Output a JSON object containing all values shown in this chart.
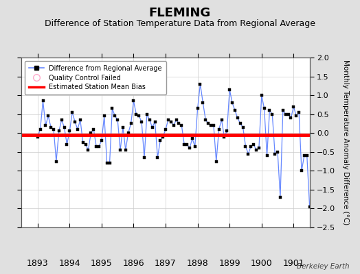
{
  "title": "FLEMING",
  "subtitle": "Difference of Station Temperature Data from Regional Average",
  "ylabel_right": "Monthly Temperature Anomaly Difference (°C)",
  "xlim": [
    1892.5,
    1901.5
  ],
  "ylim": [
    -2.5,
    2.0
  ],
  "yticks": [
    -2.5,
    -2.0,
    -1.5,
    -1.0,
    -0.5,
    0.0,
    0.5,
    1.0,
    1.5,
    2.0
  ],
  "xticks": [
    1893,
    1894,
    1895,
    1896,
    1897,
    1898,
    1899,
    1900,
    1901
  ],
  "bias_value": -0.05,
  "line_color": "#6688ff",
  "marker_color": "#000000",
  "bias_color": "#ff0000",
  "background_color": "#e0e0e0",
  "plot_bg_color": "#ffffff",
  "watermark": "Berkeley Earth",
  "title_fontsize": 13,
  "subtitle_fontsize": 9,
  "x_data": [
    1893.0,
    1893.083,
    1893.167,
    1893.25,
    1893.333,
    1893.417,
    1893.5,
    1893.583,
    1893.667,
    1893.75,
    1893.833,
    1893.917,
    1894.0,
    1894.083,
    1894.167,
    1894.25,
    1894.333,
    1894.417,
    1894.5,
    1894.583,
    1894.667,
    1894.75,
    1894.833,
    1894.917,
    1895.0,
    1895.083,
    1895.167,
    1895.25,
    1895.333,
    1895.417,
    1895.5,
    1895.583,
    1895.667,
    1895.75,
    1895.833,
    1895.917,
    1896.0,
    1896.083,
    1896.167,
    1896.25,
    1896.333,
    1896.417,
    1896.5,
    1896.583,
    1896.667,
    1896.75,
    1896.833,
    1896.917,
    1897.0,
    1897.083,
    1897.167,
    1897.25,
    1897.333,
    1897.417,
    1897.5,
    1897.583,
    1897.667,
    1897.75,
    1897.833,
    1897.917,
    1898.0,
    1898.083,
    1898.167,
    1898.25,
    1898.333,
    1898.417,
    1898.5,
    1898.583,
    1898.667,
    1898.75,
    1898.833,
    1898.917,
    1899.0,
    1899.083,
    1899.167,
    1899.25,
    1899.333,
    1899.417,
    1899.5,
    1899.583,
    1899.667,
    1899.75,
    1899.833,
    1899.917,
    1900.0,
    1900.083,
    1900.167,
    1900.25,
    1900.333,
    1900.417,
    1900.5,
    1900.583,
    1900.667,
    1900.75,
    1900.833,
    1900.917,
    1901.0,
    1901.083,
    1901.167,
    1901.25,
    1901.333,
    1901.417,
    1901.5
  ],
  "y_data": [
    -0.1,
    0.1,
    0.85,
    0.2,
    0.45,
    0.15,
    0.1,
    -0.75,
    0.05,
    0.35,
    0.15,
    -0.3,
    0.05,
    0.55,
    0.3,
    0.1,
    0.35,
    -0.25,
    -0.3,
    -0.45,
    0.0,
    0.1,
    -0.35,
    -0.35,
    -0.2,
    0.45,
    -0.8,
    -0.8,
    0.65,
    0.45,
    0.35,
    -0.45,
    0.15,
    -0.45,
    0.0,
    0.25,
    0.85,
    0.5,
    0.45,
    0.3,
    -0.65,
    0.5,
    0.35,
    0.15,
    0.3,
    -0.65,
    -0.2,
    -0.1,
    0.1,
    0.35,
    0.3,
    0.2,
    0.35,
    0.25,
    0.2,
    -0.3,
    -0.3,
    -0.4,
    -0.15,
    -0.35,
    0.65,
    1.3,
    0.8,
    0.35,
    0.25,
    0.2,
    0.2,
    -0.75,
    0.1,
    0.35,
    -0.1,
    0.05,
    1.15,
    0.8,
    0.6,
    0.4,
    0.25,
    0.15,
    -0.35,
    -0.55,
    -0.35,
    -0.3,
    -0.45,
    -0.4,
    1.0,
    0.65,
    -0.6,
    0.6,
    0.5,
    -0.55,
    -0.5,
    -1.7,
    0.6,
    0.5,
    0.5,
    0.4,
    0.7,
    0.45,
    0.55,
    -1.0,
    -0.6,
    -0.6,
    -1.95
  ]
}
